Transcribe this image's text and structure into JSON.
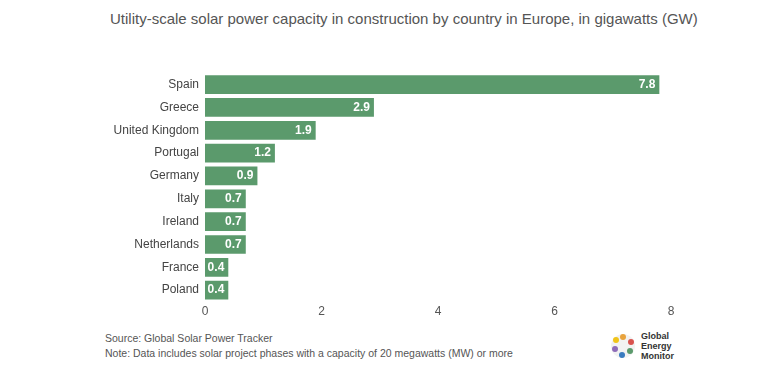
{
  "chart_data": {
    "type": "bar",
    "title": "Utility-scale solar power capacity in construction by country in Europe, in gigawatts (GW)",
    "categories": [
      "Spain",
      "Greece",
      "United Kingdom",
      "Portugal",
      "Germany",
      "Italy",
      "Ireland",
      "Netherlands",
      "France",
      "Poland"
    ],
    "values": [
      7.8,
      2.9,
      1.9,
      1.2,
      0.9,
      0.7,
      0.7,
      0.7,
      0.4,
      0.4
    ],
    "color": "#5b9a6c",
    "xlim": [
      0,
      8
    ],
    "xticks": [
      0,
      2,
      4,
      6,
      8
    ],
    "orientation": "horizontal",
    "data_labels": true,
    "grid": false,
    "source": "Source: Global Solar Power Tracker",
    "note": "Note: Data includes solar project phases with a capacity of 20 megawatts (MW) or more",
    "credit": "Global Energy Monitor"
  }
}
